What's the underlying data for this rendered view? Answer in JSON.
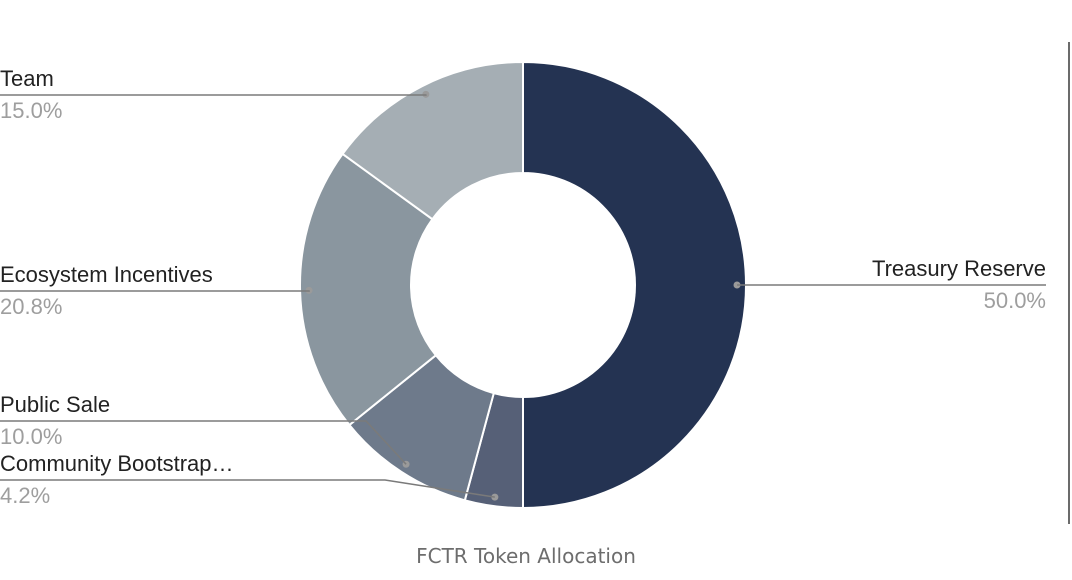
{
  "caption": "FCTR Token Allocation",
  "chart_data": {
    "type": "pie",
    "variant": "donut",
    "categories": [
      "Treasury Reserve",
      "Community Bootstrap…",
      "Public Sale",
      "Ecosystem Incentives",
      "Team"
    ],
    "values": [
      50.0,
      4.2,
      10.0,
      20.8,
      15.0
    ],
    "value_labels": [
      "50.0%",
      "4.2%",
      "10.0%",
      "20.8%",
      "15.0%"
    ],
    "colors": [
      "#243352",
      "#566077",
      "#6e7a8b",
      "#8a969f",
      "#a5aeb4"
    ],
    "start_angle": "12 o'clock",
    "direction": "clockwise",
    "legend": "none",
    "labels": "outside with leader lines"
  }
}
